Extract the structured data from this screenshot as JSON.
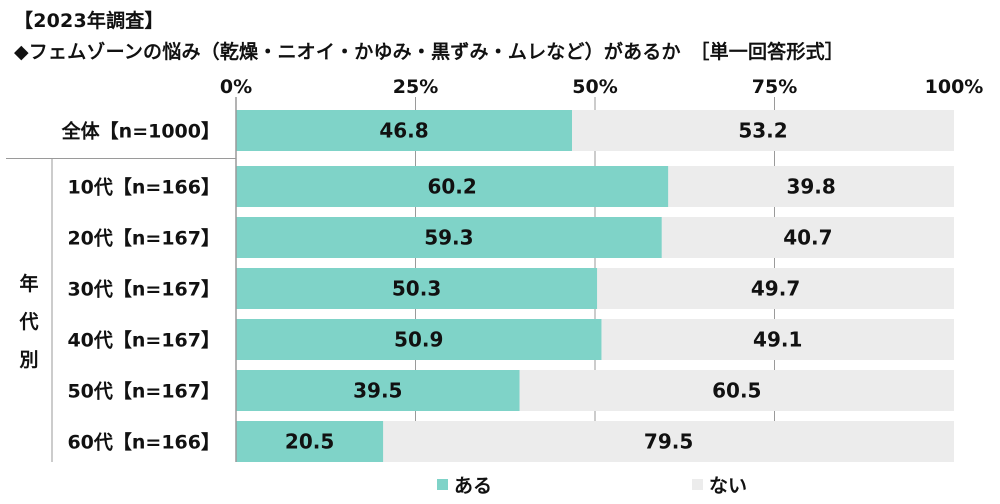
{
  "chart_title": {
    "line1": "【2023年調査】",
    "line2": "◆フェムゾーンの悩み（乾燥・ニオイ・かゆみ・黒ずみ・ムレなど）があるか　［単一回答形式］"
  },
  "group_label": "年代別",
  "colors": {
    "aru": "#7fd3c8",
    "nai": "#ececec",
    "axis": "#9a9a9a",
    "text": "#111111"
  },
  "chart_data": {
    "type": "bar",
    "orientation": "horizontal",
    "stacked": true,
    "percent": true,
    "title": "◆フェムゾーンの悩み（乾燥・ニオイ・かゆみ・黒ずみ・ムレなど）があるか　［単一回答形式］",
    "xlim": [
      0,
      100
    ],
    "xticks": [
      "0%",
      "25%",
      "50%",
      "75%",
      "100%"
    ],
    "categories": [
      "全体【n=1000】",
      "10代【n=166】",
      "20代【n=167】",
      "30代【n=167】",
      "40代【n=167】",
      "50代【n=167】",
      "60代【n=166】"
    ],
    "series": [
      {
        "name": "ある",
        "values": [
          46.8,
          60.2,
          59.3,
          50.3,
          50.9,
          39.5,
          20.5
        ]
      },
      {
        "name": "ない",
        "values": [
          53.2,
          39.8,
          40.7,
          49.7,
          49.1,
          60.5,
          79.5
        ]
      }
    ],
    "legend": "bottom",
    "grid": false
  }
}
